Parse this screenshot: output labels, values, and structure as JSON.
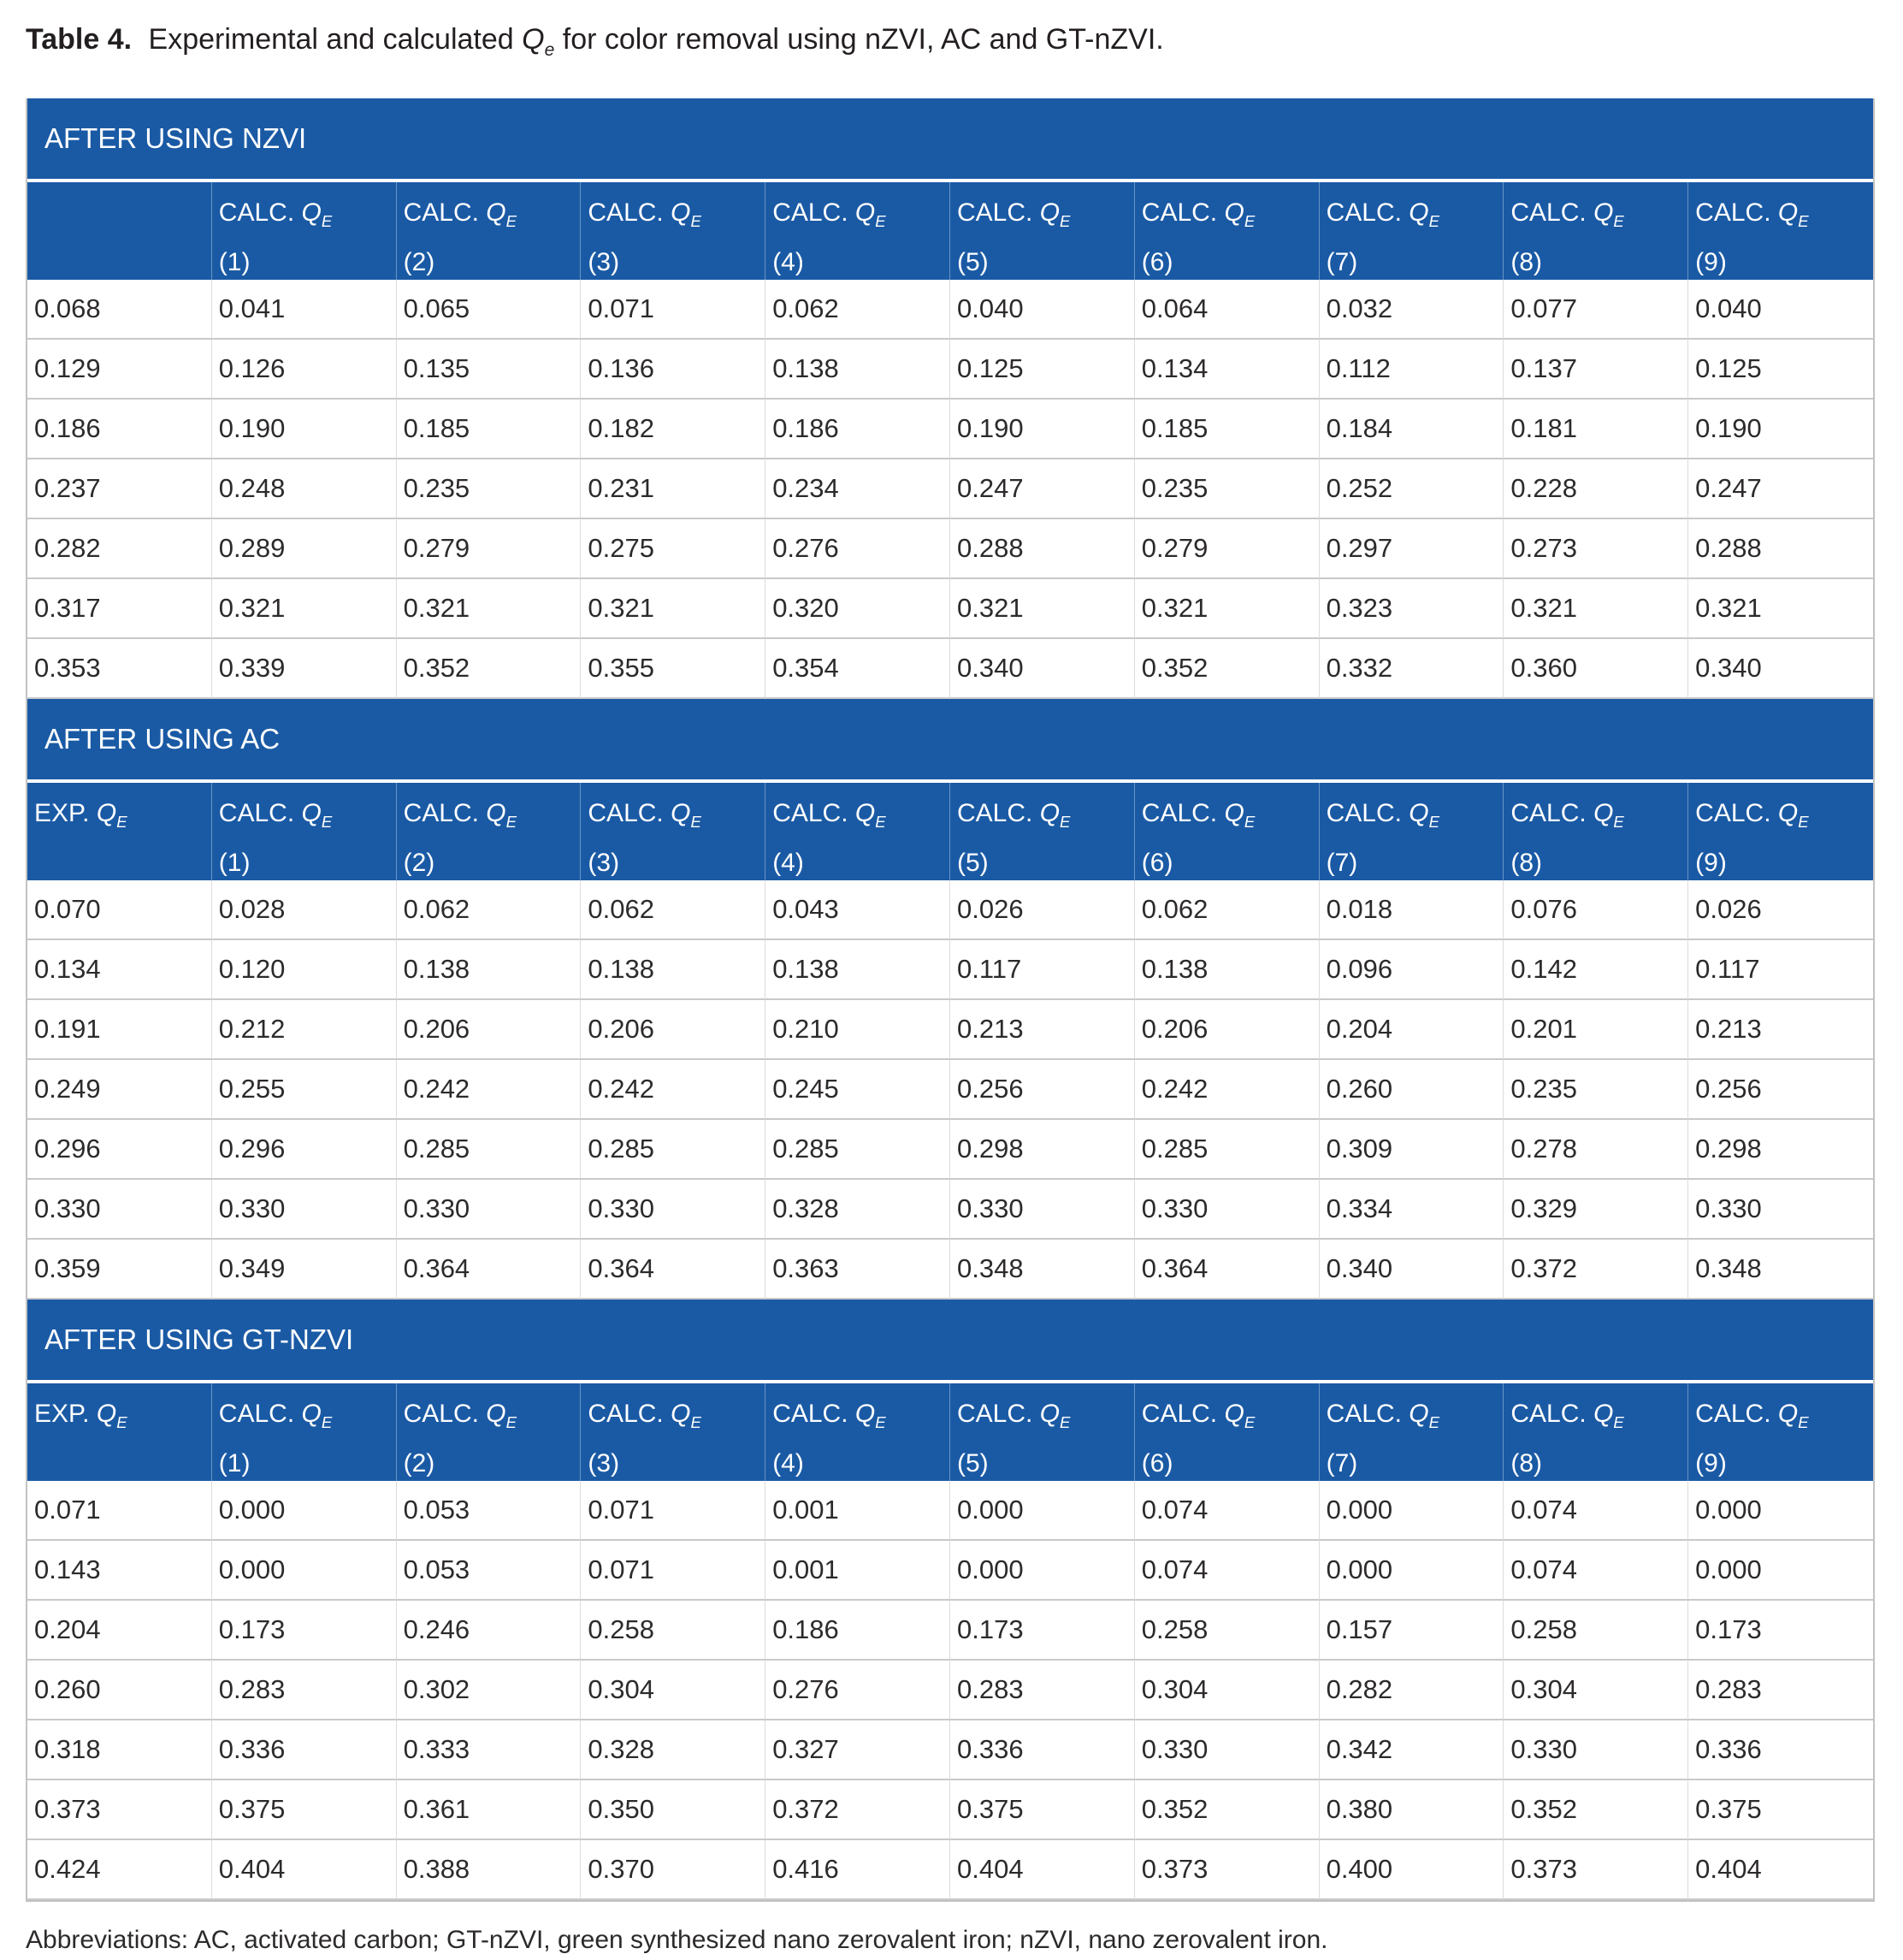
{
  "title": {
    "label": "Table 4.",
    "before_q": " Experimental and calculated ",
    "q_base": "Q",
    "q_sub": "e",
    "after_q": " for color removal using nZVI, AC and GT-nZVI."
  },
  "qe": {
    "base": "Q",
    "sub": "E"
  },
  "sections": [
    {
      "band": "AFTER USING NZVI",
      "headers": [
        {
          "prefix": "",
          "num": ""
        },
        {
          "prefix": "CALC.",
          "num": "(1)"
        },
        {
          "prefix": "CALC.",
          "num": "(2)"
        },
        {
          "prefix": "CALC.",
          "num": "(3)"
        },
        {
          "prefix": "CALC.",
          "num": "(4)"
        },
        {
          "prefix": "CALC.",
          "num": "(5)"
        },
        {
          "prefix": "CALC.",
          "num": "(6)"
        },
        {
          "prefix": "CALC.",
          "num": "(7)"
        },
        {
          "prefix": "CALC.",
          "num": "(8)"
        },
        {
          "prefix": "CALC.",
          "num": "(9)"
        }
      ],
      "rows": [
        [
          "0.068",
          "0.041",
          "0.065",
          "0.071",
          "0.062",
          "0.040",
          "0.064",
          "0.032",
          "0.077",
          "0.040"
        ],
        [
          "0.129",
          "0.126",
          "0.135",
          "0.136",
          "0.138",
          "0.125",
          "0.134",
          "0.112",
          "0.137",
          "0.125"
        ],
        [
          "0.186",
          "0.190",
          "0.185",
          "0.182",
          "0.186",
          "0.190",
          "0.185",
          "0.184",
          "0.181",
          "0.190"
        ],
        [
          "0.237",
          "0.248",
          "0.235",
          "0.231",
          "0.234",
          "0.247",
          "0.235",
          "0.252",
          "0.228",
          "0.247"
        ],
        [
          "0.282",
          "0.289",
          "0.279",
          "0.275",
          "0.276",
          "0.288",
          "0.279",
          "0.297",
          "0.273",
          "0.288"
        ],
        [
          "0.317",
          "0.321",
          "0.321",
          "0.321",
          "0.320",
          "0.321",
          "0.321",
          "0.323",
          "0.321",
          "0.321"
        ],
        [
          "0.353",
          "0.339",
          "0.352",
          "0.355",
          "0.354",
          "0.340",
          "0.352",
          "0.332",
          "0.360",
          "0.340"
        ]
      ]
    },
    {
      "band": "AFTER USING AC",
      "headers": [
        {
          "prefix": "EXP.",
          "num": ""
        },
        {
          "prefix": "CALC.",
          "num": "(1)"
        },
        {
          "prefix": "CALC.",
          "num": "(2)"
        },
        {
          "prefix": "CALC.",
          "num": "(3)"
        },
        {
          "prefix": "CALC.",
          "num": "(4)"
        },
        {
          "prefix": "CALC.",
          "num": "(5)"
        },
        {
          "prefix": "CALC.",
          "num": "(6)"
        },
        {
          "prefix": "CALC.",
          "num": "(7)"
        },
        {
          "prefix": "CALC.",
          "num": "(8)"
        },
        {
          "prefix": "CALC.",
          "num": "(9)"
        }
      ],
      "rows": [
        [
          "0.070",
          "0.028",
          "0.062",
          "0.062",
          "0.043",
          "0.026",
          "0.062",
          "0.018",
          "0.076",
          "0.026"
        ],
        [
          "0.134",
          "0.120",
          "0.138",
          "0.138",
          "0.138",
          "0.117",
          "0.138",
          "0.096",
          "0.142",
          "0.117"
        ],
        [
          "0.191",
          "0.212",
          "0.206",
          "0.206",
          "0.210",
          "0.213",
          "0.206",
          "0.204",
          "0.201",
          "0.213"
        ],
        [
          "0.249",
          "0.255",
          "0.242",
          "0.242",
          "0.245",
          "0.256",
          "0.242",
          "0.260",
          "0.235",
          "0.256"
        ],
        [
          "0.296",
          "0.296",
          "0.285",
          "0.285",
          "0.285",
          "0.298",
          "0.285",
          "0.309",
          "0.278",
          "0.298"
        ],
        [
          "0.330",
          "0.330",
          "0.330",
          "0.330",
          "0.328",
          "0.330",
          "0.330",
          "0.334",
          "0.329",
          "0.330"
        ],
        [
          "0.359",
          "0.349",
          "0.364",
          "0.364",
          "0.363",
          "0.348",
          "0.364",
          "0.340",
          "0.372",
          "0.348"
        ]
      ]
    },
    {
      "band": "AFTER USING GT-NZVI",
      "headers": [
        {
          "prefix": "EXP.",
          "num": ""
        },
        {
          "prefix": "CALC.",
          "num": "(1)"
        },
        {
          "prefix": "CALC.",
          "num": "(2)"
        },
        {
          "prefix": "CALC.",
          "num": "(3)"
        },
        {
          "prefix": "CALC.",
          "num": "(4)"
        },
        {
          "prefix": "CALC.",
          "num": "(5)"
        },
        {
          "prefix": "CALC.",
          "num": "(6)"
        },
        {
          "prefix": "CALC.",
          "num": "(7)"
        },
        {
          "prefix": "CALC.",
          "num": "(8)"
        },
        {
          "prefix": "CALC.",
          "num": "(9)"
        }
      ],
      "rows": [
        [
          "0.071",
          "0.000",
          "0.053",
          "0.071",
          "0.001",
          "0.000",
          "0.074",
          "0.000",
          "0.074",
          "0.000"
        ],
        [
          "0.143",
          "0.000",
          "0.053",
          "0.071",
          "0.001",
          "0.000",
          "0.074",
          "0.000",
          "0.074",
          "0.000"
        ],
        [
          "0.204",
          "0.173",
          "0.246",
          "0.258",
          "0.186",
          "0.173",
          "0.258",
          "0.157",
          "0.258",
          "0.173"
        ],
        [
          "0.260",
          "0.283",
          "0.302",
          "0.304",
          "0.276",
          "0.283",
          "0.304",
          "0.282",
          "0.304",
          "0.283"
        ],
        [
          "0.318",
          "0.336",
          "0.333",
          "0.328",
          "0.327",
          "0.336",
          "0.330",
          "0.342",
          "0.330",
          "0.336"
        ],
        [
          "0.373",
          "0.375",
          "0.361",
          "0.350",
          "0.372",
          "0.375",
          "0.352",
          "0.380",
          "0.352",
          "0.375"
        ],
        [
          "0.424",
          "0.404",
          "0.388",
          "0.370",
          "0.416",
          "0.404",
          "0.373",
          "0.400",
          "0.373",
          "0.404"
        ]
      ]
    }
  ],
  "footnote": "Abbreviations: AC, activated carbon; GT-nZVI, green synthesized nano zerovalent iron; nZVI, nano zerovalent iron.",
  "colors": {
    "header_blue": "#1a5aa5",
    "row_line": "#c9c9c9",
    "outer_border": "#c2c2c2",
    "text": "#2d2a2b"
  }
}
